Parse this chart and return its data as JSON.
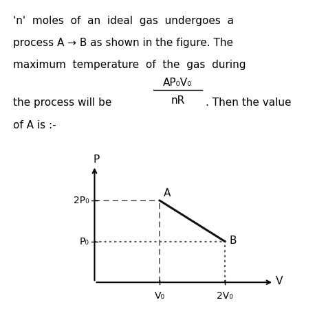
{
  "bg_color": "#ffffff",
  "line1": "'n'  moles  of  an  ideal  gas  undergoes  a",
  "line2": "process A → B as shown in the figure. The",
  "line3": "maximum  temperature  of  the  gas  during",
  "frac_num": "AP₀V₀",
  "frac_den": "nR",
  "line4_pre": "the process will be",
  "line4_post": ". Then the value",
  "line5": "of A is :-",
  "graph": {
    "x_axis_label": "V",
    "y_axis_label": "P",
    "point_A": [
      1,
      2
    ],
    "point_B": [
      2,
      1
    ],
    "x_tick_labels": [
      "V₀",
      "2V₀"
    ],
    "y_tick_labels": [
      "P₀",
      "2P₀"
    ],
    "dash_color": "#555555",
    "line_color": "#111111"
  },
  "font_size": 11,
  "fig_width": 4.74,
  "fig_height": 4.5,
  "dpi": 100
}
